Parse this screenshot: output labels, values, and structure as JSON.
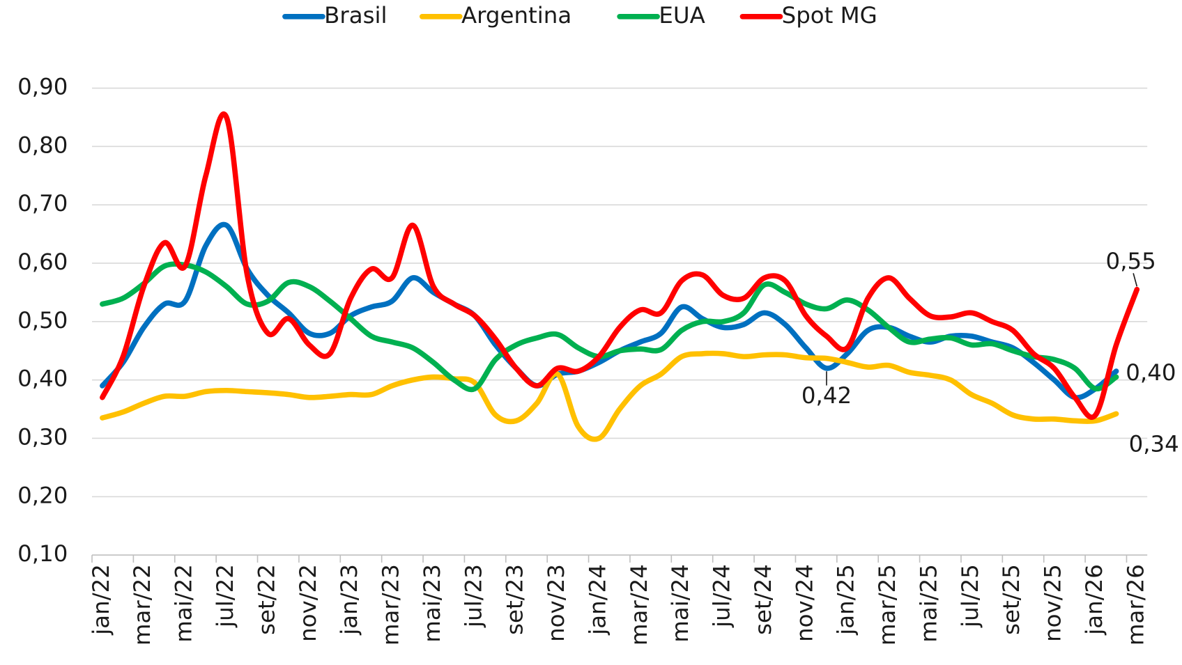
{
  "chart_data": {
    "type": "line",
    "categories": [
      "jan/22",
      null,
      "mar/22",
      null,
      "mai/22",
      null,
      "jul/22",
      null,
      "set/22",
      null,
      "nov/22",
      null,
      "jan/23",
      null,
      "mar/23",
      null,
      "mai/23",
      null,
      "jul/23",
      null,
      "set/23",
      null,
      "nov/23",
      null,
      "jan/24",
      null,
      "mar/24",
      null,
      "mai/24",
      null,
      "jul/24",
      null,
      "set/24",
      null,
      "nov/24",
      null,
      "jan/25",
      null,
      "mar/25",
      null,
      "mai/25",
      null,
      "jul/25",
      null,
      "set/25",
      null,
      "nov/25",
      null,
      "jan/26",
      null,
      "mar/26"
    ],
    "series": [
      {
        "name": "Brasil",
        "color": "#0070c0",
        "values": [
          0.39,
          0.43,
          0.49,
          0.53,
          0.535,
          0.63,
          0.665,
          0.59,
          0.545,
          0.515,
          0.48,
          0.48,
          0.51,
          0.525,
          0.535,
          0.575,
          0.55,
          0.53,
          0.51,
          0.46,
          0.42,
          0.39,
          0.41,
          0.415,
          0.43,
          0.45,
          0.465,
          0.48,
          0.525,
          0.505,
          0.49,
          0.495,
          0.515,
          0.495,
          0.455,
          0.42,
          0.445,
          0.485,
          0.49,
          0.475,
          0.465,
          0.475,
          0.475,
          0.465,
          0.455,
          0.43,
          0.4,
          0.37,
          0.385,
          0.415,
          null
        ],
        "value_labels": [
          null,
          null,
          null,
          null,
          null,
          null,
          null,
          null,
          null,
          null,
          null,
          null,
          null,
          null,
          null,
          null,
          null,
          null,
          null,
          null,
          null,
          null,
          null,
          null,
          null,
          null,
          null,
          null,
          null,
          null,
          null,
          null,
          null,
          null,
          null,
          "0,42",
          null,
          null,
          null,
          null,
          null,
          null,
          null,
          null,
          null,
          null,
          null,
          null,
          null,
          null,
          null
        ]
      },
      {
        "name": "Argentina",
        "color": "#ffc000",
        "values": [
          0.335,
          0.345,
          0.36,
          0.372,
          0.372,
          0.38,
          0.382,
          0.38,
          0.378,
          0.375,
          0.37,
          0.372,
          0.375,
          0.375,
          0.39,
          0.4,
          0.405,
          0.402,
          0.395,
          0.34,
          0.33,
          0.36,
          0.41,
          0.32,
          0.3,
          0.35,
          0.39,
          0.41,
          0.44,
          0.445,
          0.445,
          0.44,
          0.443,
          0.443,
          0.438,
          0.437,
          0.43,
          0.422,
          0.425,
          0.413,
          0.408,
          0.4,
          0.375,
          0.36,
          0.34,
          0.333,
          0.333,
          0.33,
          0.33,
          0.342,
          null
        ],
        "value_labels": [
          null,
          null,
          null,
          null,
          null,
          null,
          null,
          null,
          null,
          null,
          null,
          null,
          null,
          null,
          null,
          null,
          null,
          null,
          null,
          null,
          null,
          null,
          null,
          null,
          null,
          null,
          null,
          null,
          null,
          null,
          null,
          null,
          null,
          null,
          null,
          null,
          null,
          null,
          null,
          null,
          null,
          null,
          null,
          null,
          null,
          null,
          null,
          null,
          null,
          "0,34",
          null
        ]
      },
      {
        "name": "EUA",
        "color": "#00b050",
        "values": [
          0.53,
          0.54,
          0.565,
          0.595,
          0.597,
          0.585,
          0.56,
          0.53,
          0.535,
          0.567,
          0.56,
          0.535,
          0.505,
          0.475,
          0.465,
          0.455,
          0.43,
          0.4,
          0.385,
          0.435,
          0.46,
          0.472,
          0.478,
          0.455,
          0.44,
          0.45,
          0.453,
          0.452,
          0.485,
          0.5,
          0.5,
          0.515,
          0.563,
          0.55,
          0.53,
          0.522,
          0.537,
          0.52,
          0.49,
          0.465,
          0.47,
          0.472,
          0.46,
          0.462,
          0.45,
          0.44,
          0.435,
          0.42,
          0.385,
          0.405,
          null
        ],
        "value_labels": [
          null,
          null,
          null,
          null,
          null,
          null,
          null,
          null,
          null,
          null,
          null,
          null,
          null,
          null,
          null,
          null,
          null,
          null,
          null,
          null,
          null,
          null,
          null,
          null,
          null,
          null,
          null,
          null,
          null,
          null,
          null,
          null,
          null,
          null,
          null,
          null,
          null,
          null,
          null,
          null,
          null,
          null,
          null,
          null,
          null,
          null,
          null,
          null,
          null,
          "0,40",
          null
        ]
      },
      {
        "name": "Spot MG",
        "color": "#ff0000",
        "values": [
          0.37,
          0.44,
          0.56,
          0.635,
          0.595,
          0.75,
          0.85,
          0.58,
          0.48,
          0.505,
          0.46,
          0.445,
          0.54,
          0.59,
          0.575,
          0.665,
          0.56,
          0.53,
          0.51,
          0.47,
          0.42,
          0.39,
          0.42,
          0.415,
          0.44,
          0.49,
          0.52,
          0.515,
          0.57,
          0.58,
          0.545,
          0.54,
          0.575,
          0.57,
          0.51,
          0.475,
          0.455,
          0.54,
          0.575,
          0.54,
          0.51,
          0.508,
          0.515,
          0.5,
          0.485,
          0.445,
          0.42,
          0.37,
          0.34,
          0.46,
          0.555
        ],
        "value_labels": [
          null,
          null,
          null,
          null,
          null,
          null,
          null,
          null,
          null,
          null,
          null,
          null,
          null,
          null,
          null,
          null,
          null,
          null,
          null,
          null,
          null,
          null,
          null,
          null,
          null,
          null,
          null,
          null,
          null,
          null,
          null,
          null,
          null,
          null,
          null,
          null,
          null,
          null,
          null,
          null,
          null,
          null,
          null,
          null,
          null,
          null,
          null,
          null,
          null,
          null,
          "0,55"
        ]
      }
    ],
    "ylim": [
      0.1,
      0.9
    ],
    "yticks": [
      {
        "value": 0.1,
        "label": "0,10"
      },
      {
        "value": 0.2,
        "label": "0,20"
      },
      {
        "value": 0.3,
        "label": "0,30"
      },
      {
        "value": 0.4,
        "label": "0,40"
      },
      {
        "value": 0.5,
        "label": "0,50"
      },
      {
        "value": 0.6,
        "label": "0,60"
      },
      {
        "value": 0.7,
        "label": "0,70"
      },
      {
        "value": 0.8,
        "label": "0,80"
      },
      {
        "value": 0.9,
        "label": "0,90"
      }
    ],
    "grid": true,
    "legend": "top"
  }
}
